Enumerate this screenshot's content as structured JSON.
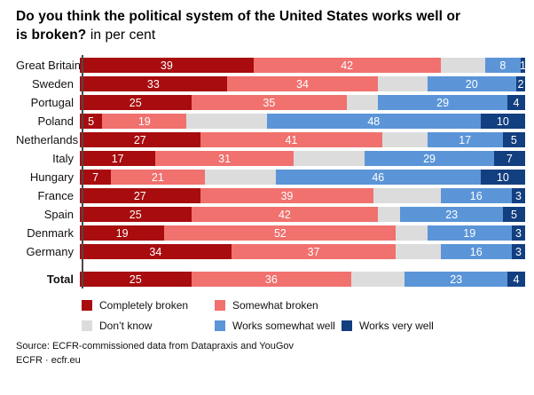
{
  "title": {
    "line1": "Do you think the political system of the United States works well or",
    "line2_question": "is broken?",
    "line2_unit": "in per cent"
  },
  "chart_data": {
    "type": "bar",
    "orientation": "horizontal",
    "stacked": true,
    "xlim": [
      0,
      100
    ],
    "grid": false,
    "value_unit": "per cent",
    "categories": [
      "Great Britain",
      "Sweden",
      "Portugal",
      "Poland",
      "Netherlands",
      "Italy",
      "Hungary",
      "France",
      "Spain",
      "Denmark",
      "Germany",
      "Total"
    ],
    "series": [
      {
        "name": "Completely broken",
        "color": "#a80c0e",
        "show_labels": true,
        "values": [
          39,
          33,
          25,
          5,
          27,
          17,
          7,
          27,
          25,
          19,
          34,
          25
        ]
      },
      {
        "name": "Somewhat broken",
        "color": "#f0716e",
        "show_labels": true,
        "values": [
          42,
          34,
          35,
          19,
          41,
          31,
          21,
          39,
          42,
          52,
          37,
          36
        ]
      },
      {
        "name": "Don’t know",
        "color": "#dcdcdc",
        "show_labels": false,
        "values": [
          10,
          11,
          7,
          18,
          10,
          16,
          16,
          15,
          5,
          7,
          10,
          12
        ]
      },
      {
        "name": "Works somewhat well",
        "color": "#5b95d8",
        "show_labels": true,
        "values": [
          8,
          20,
          29,
          48,
          17,
          29,
          46,
          16,
          23,
          19,
          16,
          23
        ]
      },
      {
        "name": "Works very well",
        "color": "#123f80",
        "show_labels": true,
        "values": [
          1,
          2,
          4,
          10,
          5,
          7,
          10,
          3,
          5,
          3,
          3,
          4
        ]
      }
    ]
  },
  "legend": {
    "rows": [
      [
        {
          "label": "Completely broken",
          "color": "#a80c0e"
        },
        {
          "label": "Somewhat broken",
          "color": "#f0716e"
        }
      ],
      [
        {
          "label": "Don’t know",
          "color": "#dcdcdc"
        },
        {
          "label": "Works somewhat well",
          "color": "#5b95d8"
        },
        {
          "label": "Works very well",
          "color": "#123f80"
        }
      ]
    ]
  },
  "source": {
    "line1": "Source: ECFR-commissioned data from Datapraxis and YouGov",
    "line2": "ECFR · ecfr.eu"
  },
  "colors": {
    "completely_broken": "#a80c0e",
    "somewhat_broken": "#f0716e",
    "dont_know": "#dcdcdc",
    "works_somewhat_well": "#5b95d8",
    "works_very_well": "#123f80",
    "axis_line": "#4a4a4a",
    "background": "#ffffff"
  }
}
